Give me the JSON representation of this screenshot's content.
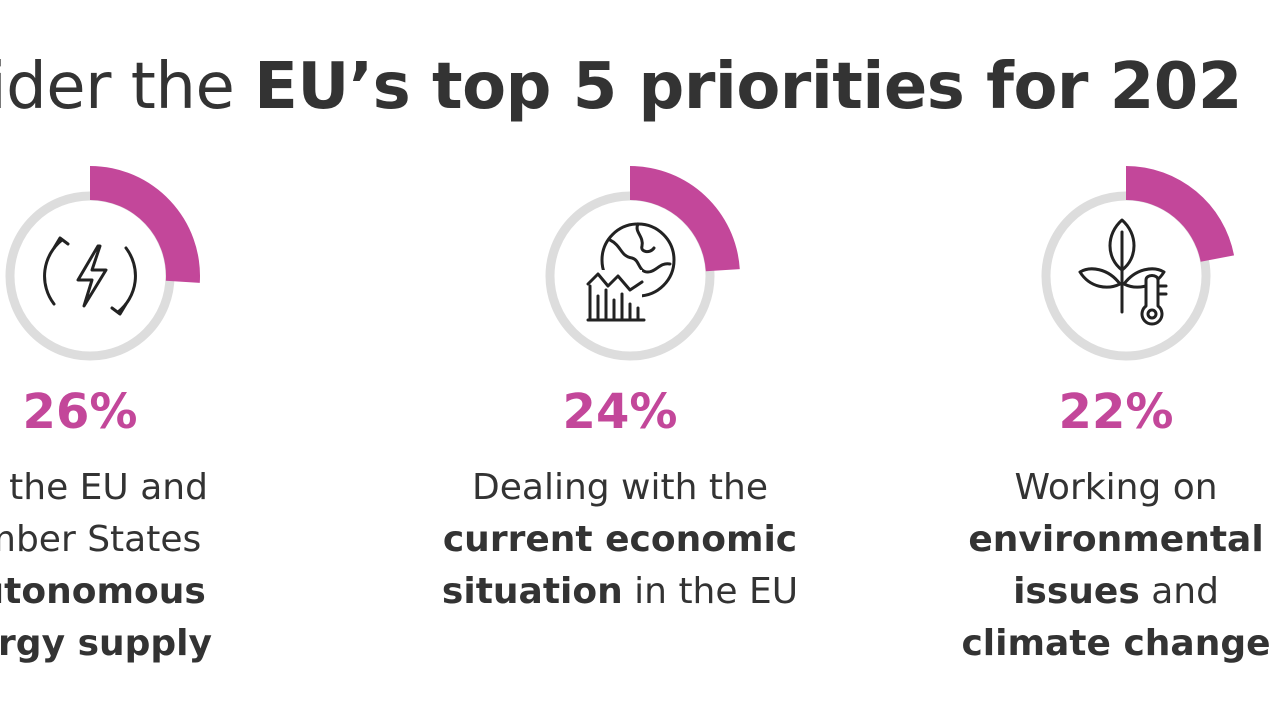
{
  "heading": {
    "lead": "sider the ",
    "emphasis": "EU’s top 5 priorities for 202"
  },
  "colors": {
    "accent": "#c3479a",
    "ring": "#dddddd",
    "text": "#333333"
  },
  "items": [
    {
      "icon": "energy-bolt-icon",
      "percent": "26%",
      "percent_value": 26,
      "lines": [
        [
          {
            "t": "ng the EU and",
            "b": false
          }
        ],
        [
          {
            "t": "ember States",
            "b": false
          }
        ],
        [
          {
            "t": "autonomous",
            "b": true
          }
        ],
        [
          {
            "t": "nergy supply",
            "b": true
          }
        ]
      ]
    },
    {
      "icon": "globe-economy-chart-icon",
      "percent": "24%",
      "percent_value": 24,
      "lines": [
        [
          {
            "t": "Dealing with the",
            "b": false
          }
        ],
        [
          {
            "t": "current economic",
            "b": true
          }
        ],
        [
          {
            "t": "situation",
            "b": true
          },
          {
            "t": " in the EU",
            "b": false
          }
        ]
      ]
    },
    {
      "icon": "plant-thermometer-icon",
      "percent": "22%",
      "percent_value": 22,
      "lines": [
        [
          {
            "t": "Working on",
            "b": false
          }
        ],
        [
          {
            "t": "environmental",
            "b": true
          }
        ],
        [
          {
            "t": "issues",
            "b": true
          },
          {
            "t": " and",
            "b": false
          }
        ],
        [
          {
            "t": "climate change",
            "b": true
          }
        ]
      ]
    }
  ]
}
